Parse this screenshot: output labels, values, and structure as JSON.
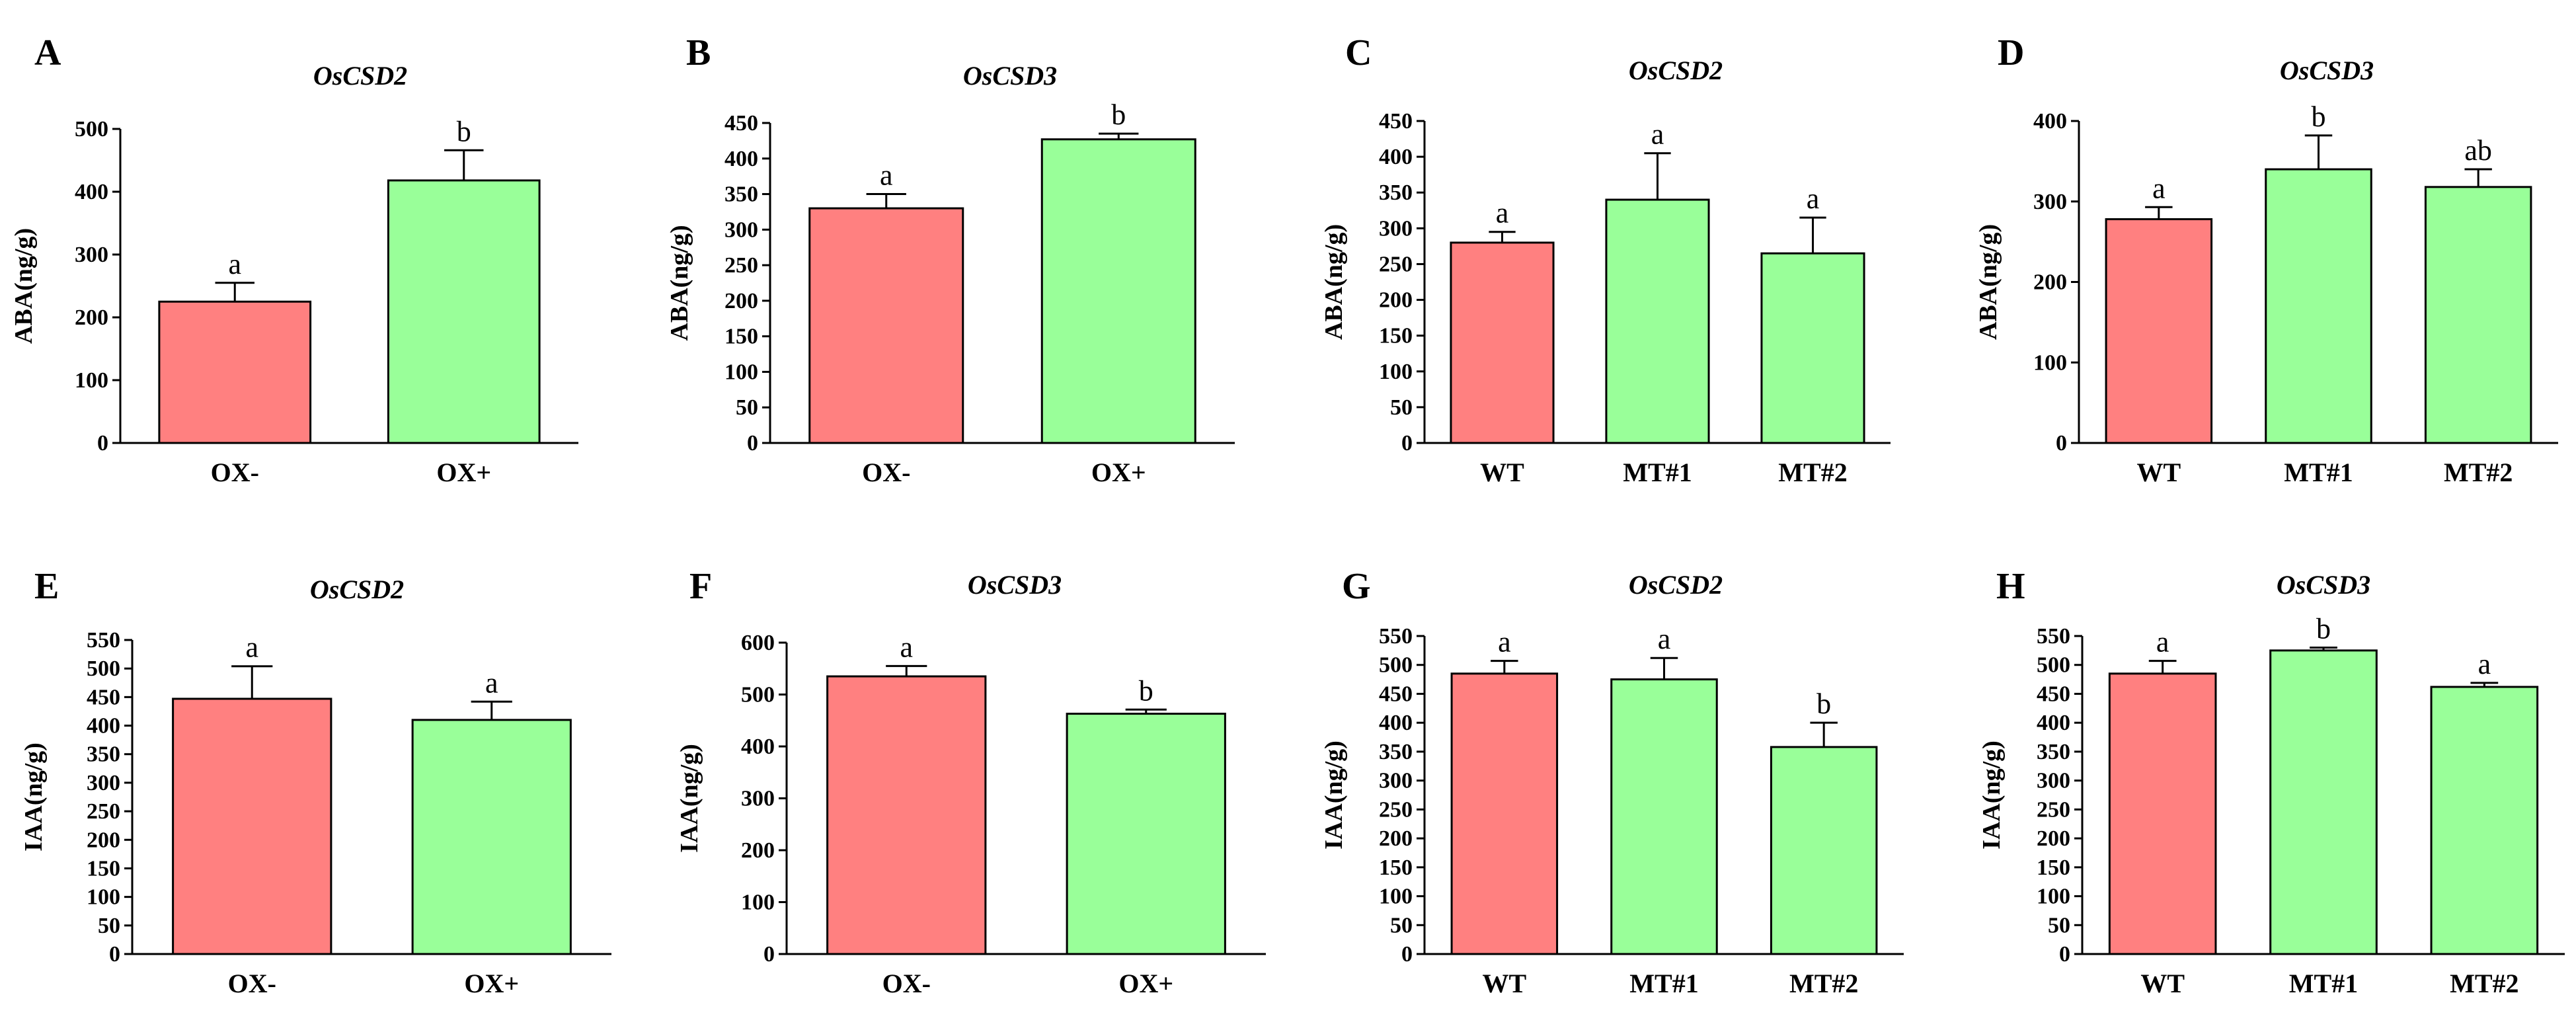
{
  "colors": {
    "ctrl": "#FF8080",
    "treat": "#99FF99",
    "axis": "#000000"
  },
  "chart_data": [
    {
      "panel": "A",
      "type": "bar",
      "title": "OsCSD2",
      "ylabel": "ABA(ng/g)",
      "categories": [
        "OX-",
        "OX+"
      ],
      "values": [
        225,
        418
      ],
      "errors": [
        30,
        48
      ],
      "letters": [
        "a",
        "b"
      ],
      "ylim": [
        0,
        500
      ],
      "yticks": [
        0,
        100,
        200,
        300,
        400,
        500
      ]
    },
    {
      "panel": "B",
      "type": "bar",
      "title": "OsCSD3",
      "ylabel": "ABA(ng/g)",
      "categories": [
        "OX-",
        "OX+"
      ],
      "values": [
        330,
        427
      ],
      "errors": [
        20,
        8
      ],
      "letters": [
        "a",
        "b"
      ],
      "ylim": [
        0,
        450
      ],
      "yticks": [
        0,
        50,
        100,
        150,
        200,
        250,
        300,
        350,
        400,
        450
      ]
    },
    {
      "panel": "C",
      "type": "bar",
      "title": "OsCSD2",
      "ylabel": "ABA(ng/g)",
      "categories": [
        "WT",
        "MT#1",
        "MT#2"
      ],
      "values": [
        280,
        340,
        265
      ],
      "errors": [
        15,
        65,
        50
      ],
      "letters": [
        "a",
        "a",
        "a"
      ],
      "ylim": [
        0,
        450
      ],
      "yticks": [
        0,
        50,
        100,
        150,
        200,
        250,
        300,
        350,
        400,
        450
      ]
    },
    {
      "panel": "D",
      "type": "bar",
      "title": "OsCSD3",
      "ylabel": "ABA(ng/g)",
      "categories": [
        "WT",
        "MT#1",
        "MT#2"
      ],
      "values": [
        278,
        340,
        318
      ],
      "errors": [
        15,
        42,
        22
      ],
      "letters": [
        "a",
        "b",
        "ab"
      ],
      "ylim": [
        0,
        400
      ],
      "yticks": [
        0,
        100,
        200,
        300,
        400
      ]
    },
    {
      "panel": "E",
      "type": "bar",
      "title": "OsCSD2",
      "ylabel": "IAA(ng/g)",
      "categories": [
        "OX-",
        "OX+"
      ],
      "values": [
        447,
        410
      ],
      "errors": [
        57,
        32
      ],
      "letters": [
        "a",
        "a"
      ],
      "ylim": [
        0,
        550
      ],
      "yticks": [
        0,
        50,
        100,
        150,
        200,
        250,
        300,
        350,
        400,
        450,
        500,
        550
      ]
    },
    {
      "panel": "F",
      "type": "bar",
      "title": "OsCSD3",
      "ylabel": "IAA(ng/g)",
      "categories": [
        "OX-",
        "OX+"
      ],
      "values": [
        535,
        463
      ],
      "errors": [
        20,
        8
      ],
      "letters": [
        "a",
        "b"
      ],
      "ylim": [
        0,
        600
      ],
      "yticks": [
        0,
        100,
        200,
        300,
        400,
        500,
        600
      ]
    },
    {
      "panel": "G",
      "type": "bar",
      "title": "OsCSD2",
      "ylabel": "IAA(ng/g)",
      "categories": [
        "WT",
        "MT#1",
        "MT#2"
      ],
      "values": [
        485,
        475,
        358
      ],
      "errors": [
        22,
        37,
        42
      ],
      "letters": [
        "a",
        "a",
        "b"
      ],
      "ylim": [
        0,
        550
      ],
      "yticks": [
        0,
        50,
        100,
        150,
        200,
        250,
        300,
        350,
        400,
        450,
        500,
        550
      ]
    },
    {
      "panel": "H",
      "type": "bar",
      "title": "OsCSD3",
      "ylabel": "IAA(ng/g)",
      "categories": [
        "WT",
        "MT#1",
        "MT#2"
      ],
      "values": [
        485,
        525,
        462
      ],
      "errors": [
        22,
        5,
        7
      ],
      "letters": [
        "a",
        "b",
        "a"
      ],
      "ylim": [
        0,
        550
      ],
      "yticks": [
        0,
        50,
        100,
        150,
        200,
        250,
        300,
        350,
        400,
        450,
        500,
        550
      ]
    }
  ]
}
